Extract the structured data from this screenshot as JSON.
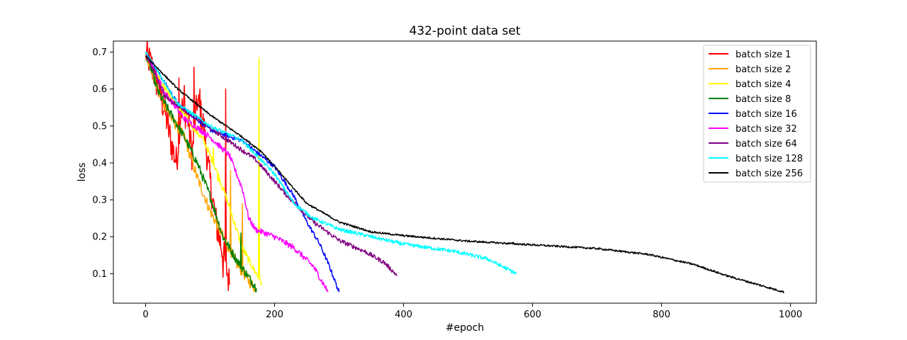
{
  "chart_data": {
    "type": "line",
    "title": "432-point data set",
    "xlabel": "#epoch",
    "ylabel": "loss",
    "xlim": [
      -50,
      1040
    ],
    "ylim": [
      0.02,
      0.73
    ],
    "xticks": [
      0,
      200,
      400,
      600,
      800,
      1000
    ],
    "yticks": [
      0.1,
      0.2,
      0.3,
      0.4,
      0.5,
      0.6,
      0.7
    ],
    "grid": false,
    "legend_position": "top-right",
    "series": [
      {
        "name": "batch size 1",
        "color": "#ff0000",
        "noise": 0.045,
        "spikes": [
          [
            52,
            0.63
          ],
          [
            60,
            0.61
          ],
          [
            75,
            0.66
          ],
          [
            84,
            0.6
          ],
          [
            124,
            0.6
          ],
          [
            120,
            0.09
          ]
        ],
        "points": [
          [
            0,
            0.7
          ],
          [
            10,
            0.66
          ],
          [
            20,
            0.6
          ],
          [
            30,
            0.54
          ],
          [
            40,
            0.45
          ],
          [
            48,
            0.4
          ],
          [
            55,
            0.55
          ],
          [
            65,
            0.53
          ],
          [
            72,
            0.42
          ],
          [
            80,
            0.57
          ],
          [
            90,
            0.5
          ],
          [
            100,
            0.35
          ],
          [
            110,
            0.23
          ],
          [
            118,
            0.17
          ],
          [
            125,
            0.12
          ],
          [
            130,
            0.07
          ]
        ]
      },
      {
        "name": "batch size 2",
        "color": "#ffa500",
        "noise": 0.015,
        "spikes": [
          [
            132,
            0.38
          ],
          [
            150,
            0.29
          ]
        ],
        "points": [
          [
            0,
            0.7
          ],
          [
            20,
            0.59
          ],
          [
            40,
            0.52
          ],
          [
            60,
            0.47
          ],
          [
            80,
            0.36
          ],
          [
            100,
            0.27
          ],
          [
            120,
            0.2
          ],
          [
            140,
            0.13
          ],
          [
            160,
            0.08
          ],
          [
            170,
            0.06
          ]
        ]
      },
      {
        "name": "batch size 4",
        "color": "#ffff00",
        "noise": 0.01,
        "spikes": [
          [
            176,
            0.685
          ],
          [
            105,
            0.44
          ],
          [
            112,
            0.35
          ]
        ],
        "points": [
          [
            0,
            0.7
          ],
          [
            30,
            0.6
          ],
          [
            60,
            0.53
          ],
          [
            90,
            0.46
          ],
          [
            110,
            0.38
          ],
          [
            130,
            0.28
          ],
          [
            150,
            0.17
          ],
          [
            165,
            0.12
          ],
          [
            175,
            0.09
          ],
          [
            180,
            0.075
          ]
        ]
      },
      {
        "name": "batch size 8",
        "color": "#008000",
        "noise": 0.012,
        "spikes": [
          [
            148,
            0.21
          ]
        ],
        "points": [
          [
            0,
            0.7
          ],
          [
            20,
            0.59
          ],
          [
            40,
            0.53
          ],
          [
            60,
            0.47
          ],
          [
            80,
            0.4
          ],
          [
            100,
            0.31
          ],
          [
            120,
            0.2
          ],
          [
            140,
            0.14
          ],
          [
            160,
            0.09
          ],
          [
            172,
            0.06
          ]
        ]
      },
      {
        "name": "batch size 16",
        "color": "#0000ff",
        "noise": 0.006,
        "spikes": [],
        "points": [
          [
            0,
            0.7
          ],
          [
            50,
            0.56
          ],
          [
            100,
            0.49
          ],
          [
            150,
            0.46
          ],
          [
            200,
            0.39
          ],
          [
            230,
            0.31
          ],
          [
            250,
            0.24
          ],
          [
            270,
            0.18
          ],
          [
            285,
            0.12
          ],
          [
            300,
            0.05
          ]
        ]
      },
      {
        "name": "batch size 32",
        "color": "#ff00ff",
        "noise": 0.008,
        "spikes": [],
        "points": [
          [
            0,
            0.7
          ],
          [
            30,
            0.59
          ],
          [
            60,
            0.52
          ],
          [
            100,
            0.47
          ],
          [
            130,
            0.42
          ],
          [
            150,
            0.33
          ],
          [
            160,
            0.25
          ],
          [
            170,
            0.22
          ],
          [
            200,
            0.2
          ],
          [
            230,
            0.17
          ],
          [
            260,
            0.12
          ],
          [
            283,
            0.05
          ]
        ]
      },
      {
        "name": "batch size 64",
        "color": "#800080",
        "noise": 0.006,
        "spikes": [],
        "points": [
          [
            0,
            0.7
          ],
          [
            30,
            0.58
          ],
          [
            80,
            0.52
          ],
          [
            120,
            0.47
          ],
          [
            170,
            0.41
          ],
          [
            220,
            0.31
          ],
          [
            260,
            0.24
          ],
          [
            300,
            0.19
          ],
          [
            340,
            0.16
          ],
          [
            370,
            0.13
          ],
          [
            390,
            0.095
          ]
        ]
      },
      {
        "name": "batch size 128",
        "color": "#00ffff",
        "noise": 0.005,
        "spikes": [],
        "points": [
          [
            0,
            0.7
          ],
          [
            50,
            0.56
          ],
          [
            100,
            0.5
          ],
          [
            150,
            0.46
          ],
          [
            200,
            0.37
          ],
          [
            230,
            0.29
          ],
          [
            260,
            0.25
          ],
          [
            300,
            0.22
          ],
          [
            400,
            0.18
          ],
          [
            480,
            0.16
          ],
          [
            530,
            0.14
          ],
          [
            575,
            0.1
          ]
        ]
      },
      {
        "name": "batch size 256",
        "color": "#000000",
        "noise": 0.0025,
        "spikes": [
          [
            330,
            0.225
          ],
          [
            570,
            0.185
          ]
        ],
        "points": [
          [
            0,
            0.69
          ],
          [
            50,
            0.6
          ],
          [
            100,
            0.53
          ],
          [
            150,
            0.47
          ],
          [
            180,
            0.43
          ],
          [
            210,
            0.37
          ],
          [
            250,
            0.29
          ],
          [
            300,
            0.24
          ],
          [
            350,
            0.213
          ],
          [
            400,
            0.203
          ],
          [
            500,
            0.188
          ],
          [
            600,
            0.178
          ],
          [
            700,
            0.168
          ],
          [
            780,
            0.152
          ],
          [
            850,
            0.125
          ],
          [
            900,
            0.095
          ],
          [
            950,
            0.07
          ],
          [
            990,
            0.05
          ]
        ]
      }
    ]
  }
}
